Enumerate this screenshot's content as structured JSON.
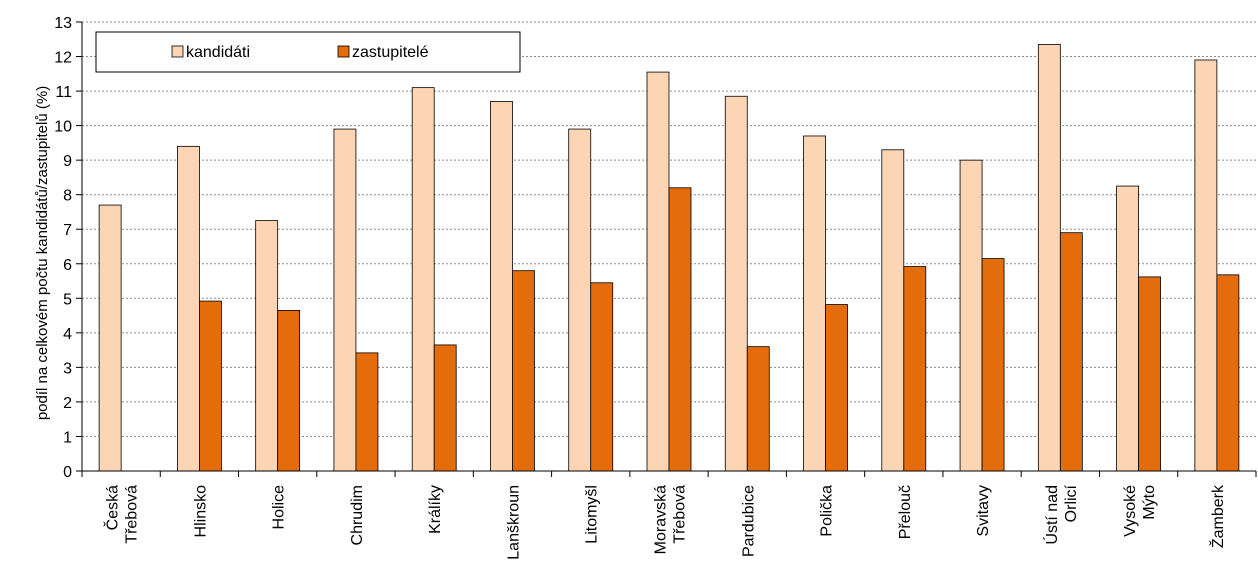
{
  "chart_data": {
    "type": "bar",
    "title": "",
    "ylabel": "podíl na celkovém počtu kandidátů/zastupitelů (%)",
    "xlabel": "",
    "ylim": [
      0,
      13
    ],
    "yticks": [
      0,
      1,
      2,
      3,
      4,
      5,
      6,
      7,
      8,
      9,
      10,
      11,
      12,
      13
    ],
    "grid": true,
    "legend_position": "top-left",
    "categories": [
      "Česká Třebová",
      "Hlinsko",
      "Holice",
      "Chrudim",
      "Králíky",
      "Lanškroun",
      "Litomyšl",
      "Moravská Třebová",
      "Pardubice",
      "Polička",
      "Přelouč",
      "Svitavy",
      "Ústí nad Orlicí",
      "Vysoké Mýto",
      "Žamberk"
    ],
    "category_lines": [
      [
        "Česká",
        "Třebová"
      ],
      [
        "Hlinsko"
      ],
      [
        "Holice"
      ],
      [
        "Chrudim"
      ],
      [
        "Králíky"
      ],
      [
        "Lanškroun"
      ],
      [
        "Litomyšl"
      ],
      [
        "Moravská",
        "Třebová"
      ],
      [
        "Pardubice"
      ],
      [
        "Polička"
      ],
      [
        "Přelouč"
      ],
      [
        "Svitavy"
      ],
      [
        "Ústí nad",
        "Orlicí"
      ],
      [
        "Vysoké",
        "Mýto"
      ],
      [
        "Žamberk"
      ]
    ],
    "series": [
      {
        "name": "kandidáti",
        "color": "#fcd5b5",
        "values": [
          7.7,
          9.4,
          7.25,
          9.9,
          11.1,
          10.7,
          9.9,
          11.55,
          10.85,
          9.7,
          9.3,
          9.0,
          12.35,
          8.25,
          11.9
        ]
      },
      {
        "name": "zastupitelé",
        "color": "#e46c0a",
        "values": [
          0,
          4.92,
          4.65,
          3.42,
          3.65,
          5.8,
          5.45,
          8.2,
          3.6,
          4.82,
          5.92,
          6.15,
          6.9,
          5.62,
          5.68
        ]
      }
    ]
  }
}
